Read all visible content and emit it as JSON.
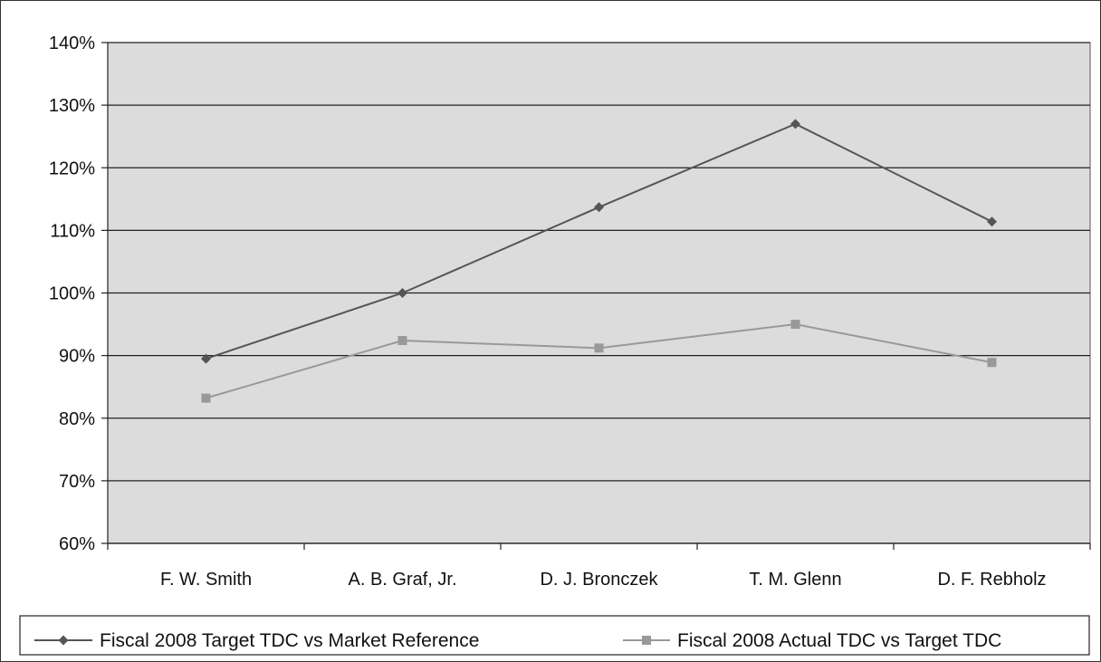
{
  "chart_data": {
    "type": "line",
    "title": "",
    "xlabel": "",
    "ylabel": "",
    "categories": [
      "F. W. Smith",
      "A. B. Graf, Jr.",
      "D. J. Bronczek",
      "T. M. Glenn",
      "D. F. Rebholz"
    ],
    "y_ticks": [
      "60%",
      "70%",
      "80%",
      "90%",
      "100%",
      "110%",
      "120%",
      "130%",
      "140%"
    ],
    "ylim": [
      60,
      140
    ],
    "grid": true,
    "legend_position": "bottom",
    "series": [
      {
        "name": "Fiscal 2008 Target TDC vs Market Reference",
        "values": [
          89.5,
          100.0,
          113.7,
          127.0,
          111.4
        ],
        "color": "#555555",
        "marker": "diamond"
      },
      {
        "name": "Fiscal 2008 Actual TDC vs Target TDC",
        "values": [
          83.2,
          92.4,
          91.2,
          95.0,
          88.9
        ],
        "color": "#999999",
        "marker": "square"
      }
    ],
    "plot_background": "#dcdcdc"
  }
}
